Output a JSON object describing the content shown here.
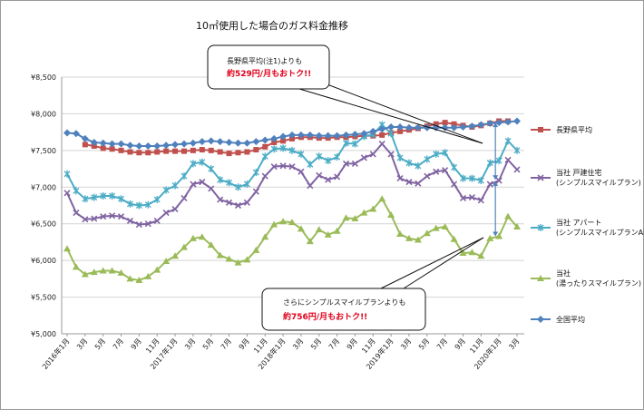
{
  "chart_data": {
    "type": "line",
    "title": "10㎡使用した場合のガス料金推移",
    "ylim": [
      5000,
      8500
    ],
    "y_ticks": [
      "¥5,000",
      "¥5,500",
      "¥6,000",
      "¥6,500",
      "¥7,000",
      "¥7,500",
      "¥8,000",
      "¥8,500"
    ],
    "y_tick_values": [
      5000,
      5500,
      6000,
      6500,
      7000,
      7500,
      8000,
      8500
    ],
    "x_tick_labels": [
      "2016年1月",
      "3月",
      "5月",
      "7月",
      "9月",
      "11月",
      "2017年1月",
      "3月",
      "5月",
      "7月",
      "9月",
      "11月",
      "2018年1月",
      "3月",
      "5月",
      "7月",
      "9月",
      "11月",
      "2019年1月",
      "3月",
      "5月",
      "7月",
      "9月",
      "11月",
      "2020年1月",
      "3月"
    ],
    "grid": true,
    "legend_position": "right",
    "series": [
      {
        "name": "長野県平均",
        "color": "#c0504d",
        "marker": "square",
        "start_index": 2,
        "values": [
          7580,
          7560,
          7530,
          7520,
          7500,
          7480,
          7470,
          7470,
          7480,
          7490,
          7490,
          7490,
          7500,
          7510,
          7500,
          7480,
          7460,
          7470,
          7480,
          7510,
          7550,
          7610,
          7630,
          7660,
          7680,
          7680,
          7670,
          7670,
          7680,
          7680,
          7690,
          7700,
          7700,
          7710,
          7740,
          7760,
          7780,
          7800,
          7830,
          7860,
          7880,
          7860,
          7840,
          7820,
          7840,
          7870,
          7900,
          7900
        ]
      },
      {
        "name": "当社 戸建住宅\n(シンプルスマイルプラン)",
        "color": "#8064a2",
        "marker": "x",
        "start_index": 0,
        "values": [
          6920,
          6650,
          6560,
          6570,
          6600,
          6610,
          6600,
          6540,
          6490,
          6500,
          6540,
          6650,
          6700,
          6850,
          7040,
          7070,
          6980,
          6830,
          6790,
          6750,
          6790,
          6940,
          7150,
          7280,
          7290,
          7280,
          7210,
          7020,
          7160,
          7100,
          7140,
          7320,
          7320,
          7400,
          7450,
          7590,
          7450,
          7120,
          7070,
          7050,
          7150,
          7210,
          7230,
          7040,
          6850,
          6860,
          6820,
          7040,
          7090,
          7370,
          7240
        ]
      },
      {
        "name": "当社 アパート\n(シンプルスマイルプランAP)",
        "color": "#4bacc6",
        "marker": "star",
        "start_index": 0,
        "values": [
          7180,
          6950,
          6840,
          6860,
          6880,
          6880,
          6840,
          6770,
          6750,
          6760,
          6830,
          6960,
          7020,
          7150,
          7320,
          7340,
          7250,
          7100,
          7060,
          7000,
          7040,
          7200,
          7420,
          7520,
          7530,
          7500,
          7450,
          7310,
          7420,
          7360,
          7410,
          7600,
          7590,
          7690,
          7720,
          7850,
          7730,
          7400,
          7330,
          7290,
          7380,
          7450,
          7470,
          7270,
          7120,
          7120,
          7090,
          7330,
          7360,
          7630,
          7500
        ]
      },
      {
        "name": "当社\n(湯ったりスマイルプラン)",
        "color": "#9bbb59",
        "marker": "triangle",
        "start_index": 0,
        "values": [
          6160,
          5910,
          5810,
          5840,
          5860,
          5860,
          5830,
          5750,
          5730,
          5780,
          5870,
          5990,
          6060,
          6180,
          6300,
          6320,
          6210,
          6070,
          6020,
          5970,
          6010,
          6140,
          6320,
          6490,
          6530,
          6520,
          6430,
          6260,
          6420,
          6350,
          6400,
          6580,
          6570,
          6650,
          6700,
          6840,
          6620,
          6360,
          6300,
          6280,
          6370,
          6440,
          6460,
          6290,
          6100,
          6110,
          6060,
          6300,
          6330,
          6600,
          6460
        ]
      },
      {
        "name": "全国平均",
        "color": "#4f81bd",
        "marker": "diamond",
        "start_index": 0,
        "values": [
          7740,
          7730,
          7660,
          7610,
          7600,
          7590,
          7590,
          7570,
          7560,
          7560,
          7560,
          7570,
          7580,
          7590,
          7600,
          7620,
          7630,
          7620,
          7610,
          7600,
          7600,
          7620,
          7640,
          7660,
          7690,
          7710,
          7710,
          7710,
          7700,
          7700,
          7700,
          7710,
          7720,
          7730,
          7760,
          7790,
          7820,
          7820,
          7810,
          7810,
          7810,
          7810,
          7810,
          7810,
          7820,
          7830,
          7850,
          7870,
          7880,
          7890,
          7900
        ]
      }
    ],
    "callouts": [
      {
        "line1": "長野県平均(注1)よりも",
        "line2": "約529円/月もおトク!!"
      },
      {
        "line1": "さらにシンプルスマイルプランよりも",
        "line2": "約756円/月もおトク!!"
      }
    ]
  }
}
